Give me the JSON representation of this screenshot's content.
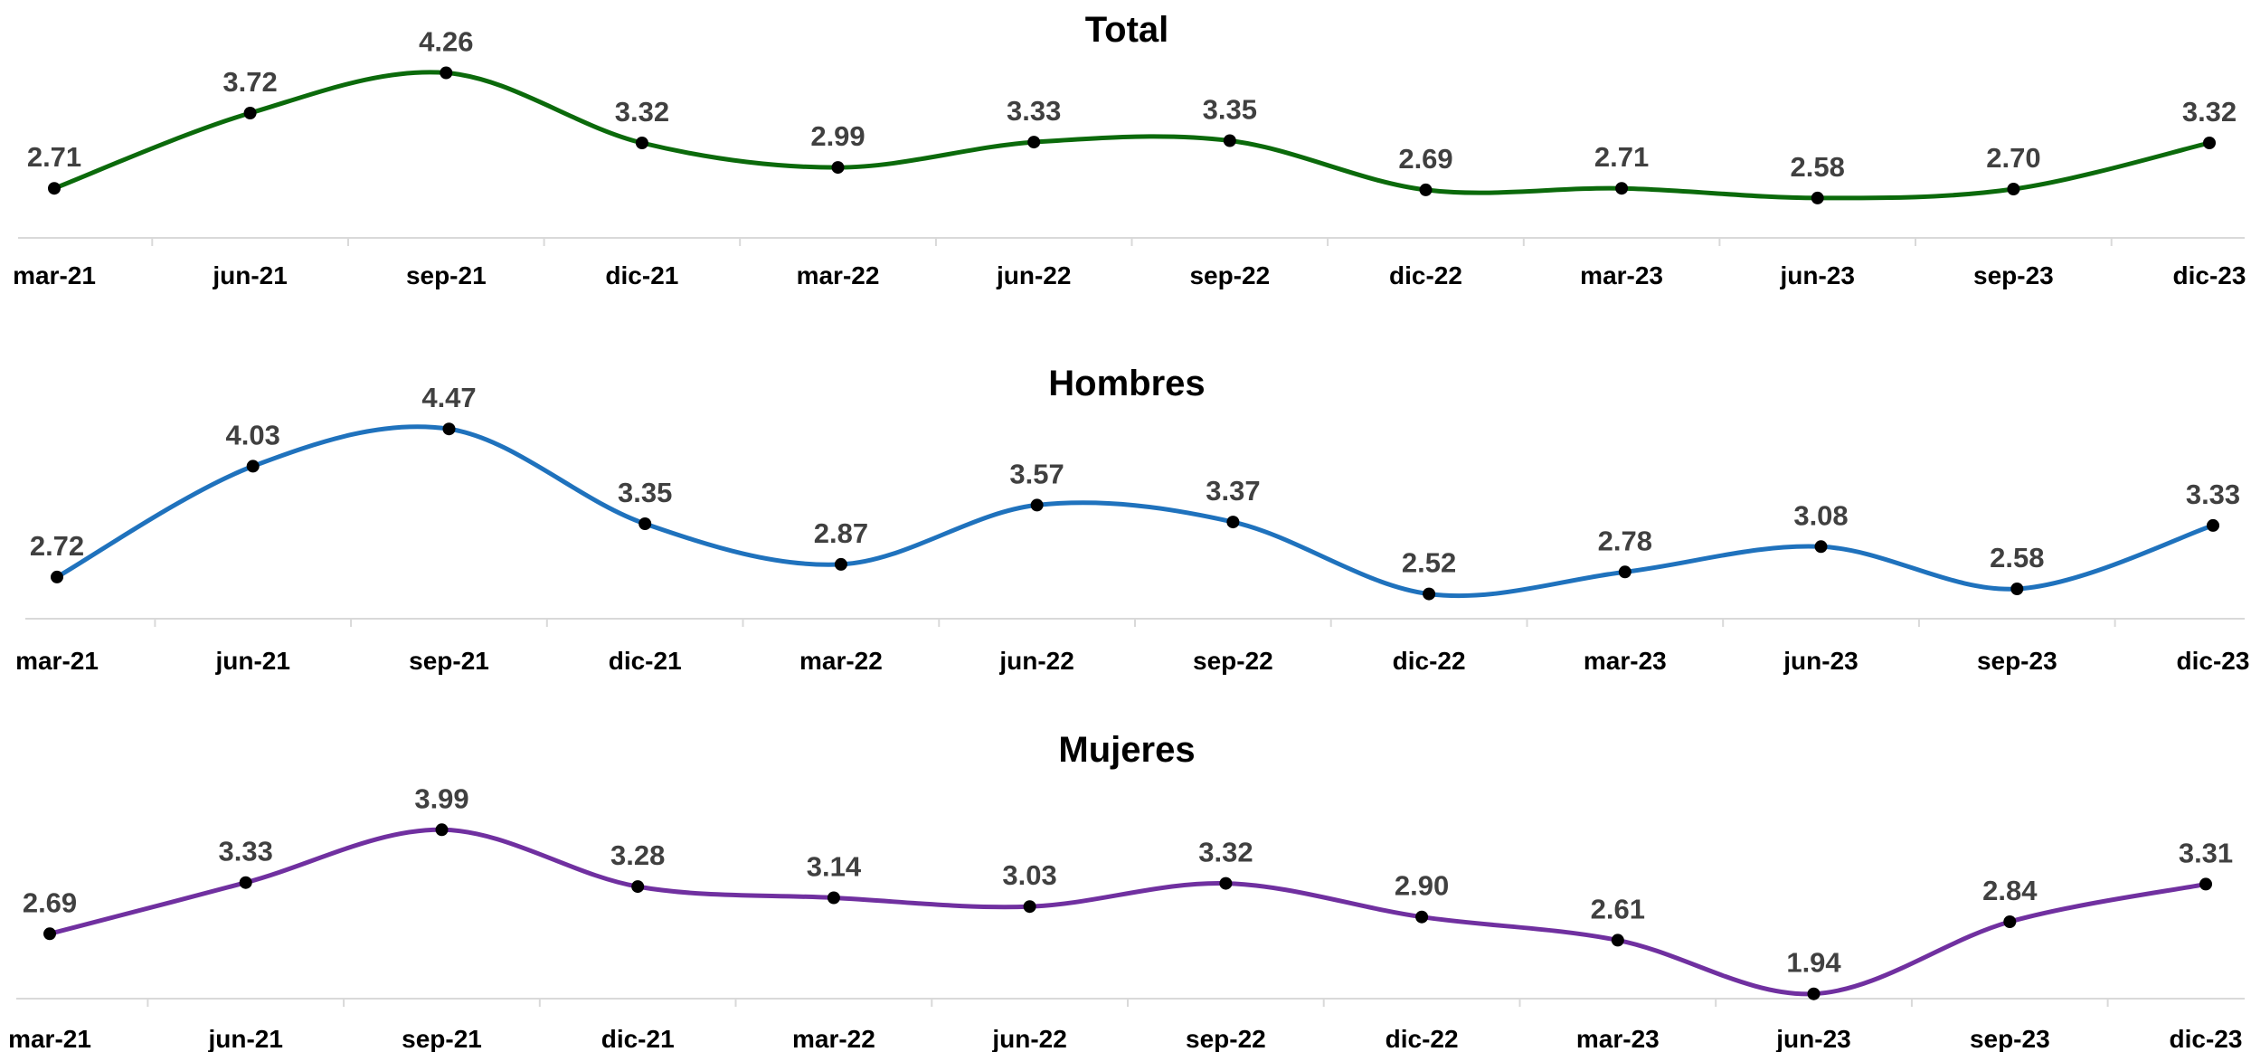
{
  "chart_data": [
    {
      "type": "line",
      "title": "Total",
      "categories": [
        "mar-21",
        "jun-21",
        "sep-21",
        "dic-21",
        "mar-22",
        "jun-22",
        "sep-22",
        "dic-22",
        "mar-23",
        "jun-23",
        "sep-23",
        "dic-23"
      ],
      "series": [
        {
          "values": [
            2.71,
            3.72,
            4.26,
            3.32,
            2.99,
            3.33,
            3.35,
            2.69,
            2.71,
            2.58,
            2.7,
            3.32
          ],
          "color": "#0b6a0b"
        }
      ],
      "data_labels": [
        "2.71",
        "3.72",
        "4.26",
        "3.32",
        "2.99",
        "3.33",
        "3.35",
        "2.69",
        "2.71",
        "2.58",
        "2.70",
        "3.32"
      ],
      "ylim": [
        2.3,
        4.8
      ],
      "grid": false,
      "smooth": true
    },
    {
      "type": "line",
      "title": "Hombres",
      "categories": [
        "mar-21",
        "jun-21",
        "sep-21",
        "dic-21",
        "mar-22",
        "jun-22",
        "sep-22",
        "dic-22",
        "mar-23",
        "jun-23",
        "sep-23",
        "dic-23"
      ],
      "series": [
        {
          "values": [
            2.72,
            4.03,
            4.47,
            3.35,
            2.87,
            3.57,
            3.37,
            2.52,
            2.78,
            3.08,
            2.58,
            3.33
          ],
          "color": "#1f72bd"
        }
      ],
      "data_labels": [
        "2.72",
        "4.03",
        "4.47",
        "3.35",
        "2.87",
        "3.57",
        "3.37",
        "2.52",
        "2.78",
        "3.08",
        "2.58",
        "3.33"
      ],
      "ylim": [
        1.8,
        4.9
      ],
      "grid": false,
      "smooth": true
    },
    {
      "type": "line",
      "title": "Mujeres",
      "categories": [
        "mar-21",
        "jun-21",
        "sep-21",
        "dic-21",
        "mar-22",
        "jun-22",
        "sep-22",
        "dic-22",
        "mar-23",
        "jun-23",
        "sep-23",
        "dic-23"
      ],
      "series": [
        {
          "values": [
            2.69,
            3.33,
            3.99,
            3.28,
            3.14,
            3.03,
            3.32,
            2.9,
            2.61,
            1.94,
            2.84,
            3.31
          ],
          "color": "#7030a0"
        }
      ],
      "data_labels": [
        "2.69",
        "3.33",
        "3.99",
        "3.28",
        "3.14",
        "3.03",
        "3.32",
        "2.90",
        "2.61",
        "1.94",
        "2.84",
        "3.31"
      ],
      "ylim": [
        1.1,
        4.4
      ],
      "grid": false,
      "smooth": true
    }
  ]
}
